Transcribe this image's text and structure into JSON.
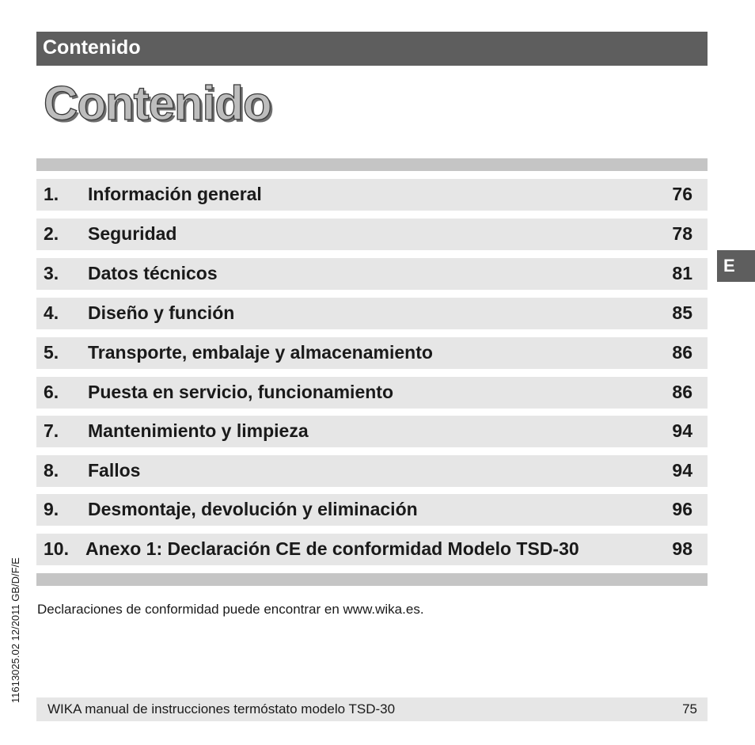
{
  "header": {
    "section_label": "Contenido"
  },
  "title": "Contenido",
  "language_tab": "E",
  "toc": [
    {
      "num": "1.",
      "title": "Información general",
      "page": "76"
    },
    {
      "num": "2.",
      "title": "Seguridad",
      "page": "78"
    },
    {
      "num": "3.",
      "title": "Datos técnicos",
      "page": "81"
    },
    {
      "num": "4.",
      "title": "Diseño y función",
      "page": "85"
    },
    {
      "num": "5.",
      "title": "Transporte, embalaje y almacenamiento",
      "page": "86"
    },
    {
      "num": "6.",
      "title": "Puesta en servicio, funcionamiento",
      "page": "86"
    },
    {
      "num": "7.",
      "title": "Mantenimiento y limpieza",
      "page": "94"
    },
    {
      "num": "8.",
      "title": "Fallos",
      "page": "94"
    },
    {
      "num": "9.",
      "title": "Desmontaje, devolución y eliminación",
      "page": "96"
    },
    {
      "num": "10.",
      "title": "Anexo 1: Declaración CE de conformidad Modelo TSD-30",
      "page": "98"
    }
  ],
  "note": "Declaraciones de conformidad puede encontrar en www.wika.es.",
  "doc_code": "11613025.02 12/2011 GB/D/F/E",
  "footer": {
    "text": "WIKA manual de instrucciones termóstato modelo TSD-30",
    "page": "75"
  },
  "colors": {
    "header_bar": "#5e5e5e",
    "row_background": "#e6e6e6",
    "rule": "#c5c5c5"
  }
}
